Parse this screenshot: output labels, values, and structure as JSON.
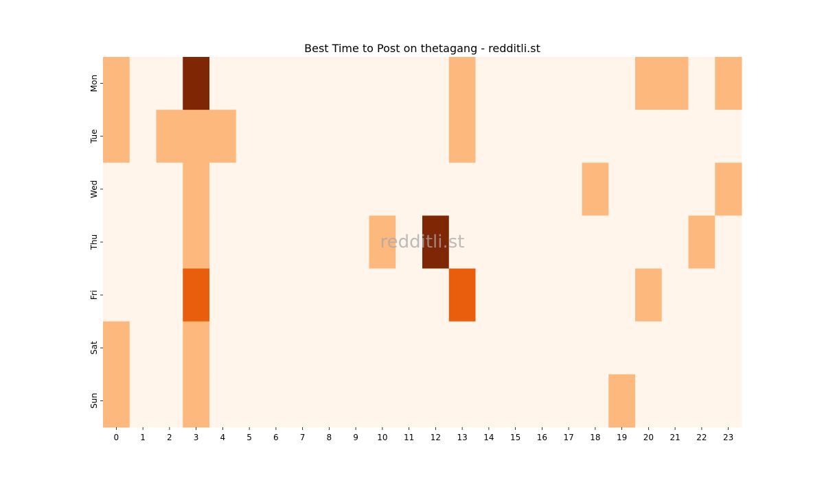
{
  "chart_data": {
    "type": "heatmap",
    "title": "Best Time to Post on thetagang - redditli.st",
    "watermark": "redditli.st",
    "xlabel": "",
    "ylabel": "",
    "x": [
      "0",
      "1",
      "2",
      "3",
      "4",
      "5",
      "6",
      "7",
      "8",
      "9",
      "10",
      "11",
      "12",
      "13",
      "14",
      "15",
      "16",
      "17",
      "18",
      "19",
      "20",
      "21",
      "22",
      "23"
    ],
    "y": [
      "Mon",
      "Tue",
      "Wed",
      "Thu",
      "Fri",
      "Sat",
      "Sun"
    ],
    "values": [
      [
        1,
        0,
        0,
        3,
        0,
        0,
        0,
        0,
        0,
        0,
        0,
        0,
        0,
        1,
        0,
        0,
        0,
        0,
        0,
        0,
        1,
        1,
        0,
        1
      ],
      [
        1,
        0,
        1,
        1,
        1,
        0,
        0,
        0,
        0,
        0,
        0,
        0,
        0,
        1,
        0,
        0,
        0,
        0,
        0,
        0,
        0,
        0,
        0,
        0
      ],
      [
        0,
        0,
        0,
        1,
        0,
        0,
        0,
        0,
        0,
        0,
        0,
        0,
        0,
        0,
        0,
        0,
        0,
        0,
        1,
        0,
        0,
        0,
        0,
        1
      ],
      [
        0,
        0,
        0,
        1,
        0,
        0,
        0,
        0,
        0,
        0,
        1,
        0,
        3,
        0,
        0,
        0,
        0,
        0,
        0,
        0,
        0,
        0,
        1,
        0
      ],
      [
        0,
        0,
        0,
        2,
        0,
        0,
        0,
        0,
        0,
        0,
        0,
        0,
        0,
        2,
        0,
        0,
        0,
        0,
        0,
        0,
        1,
        0,
        0,
        0
      ],
      [
        1,
        0,
        0,
        1,
        0,
        0,
        0,
        0,
        0,
        0,
        0,
        0,
        0,
        0,
        0,
        0,
        0,
        0,
        0,
        0,
        0,
        0,
        0,
        0
      ],
      [
        1,
        0,
        0,
        1,
        0,
        0,
        0,
        0,
        0,
        0,
        0,
        0,
        0,
        0,
        0,
        0,
        0,
        0,
        0,
        1,
        0,
        0,
        0,
        0
      ]
    ],
    "colors": [
      "#fff5eb",
      "#fdb97d",
      "#e95e0d",
      "#7f2704"
    ],
    "grid": false,
    "legend": "none"
  }
}
